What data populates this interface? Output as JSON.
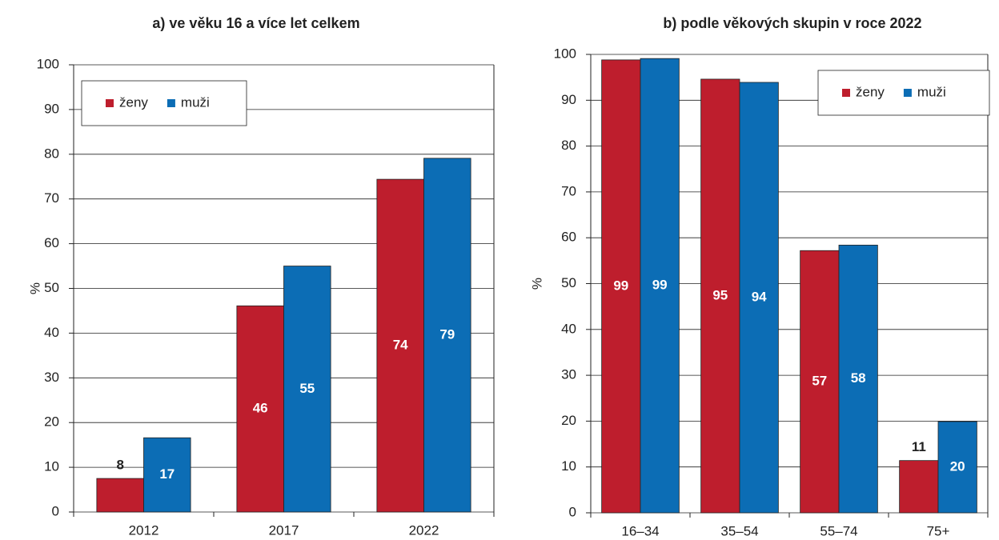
{
  "chart_data": [
    {
      "type": "bar",
      "title": "a) ve věku 16 a více let celkem",
      "ylabel": "%",
      "categories": [
        "2012",
        "2017",
        "2022"
      ],
      "series": [
        {
          "name": "ženy",
          "color": "#be1e2d",
          "values": [
            7.5,
            46.1,
            74.4
          ],
          "value_labels": [
            "8",
            "46",
            "74"
          ]
        },
        {
          "name": "muži",
          "color": "#0c6db5",
          "values": [
            16.6,
            55,
            79.1
          ],
          "value_labels": [
            "17",
            "55",
            "79"
          ]
        }
      ],
      "ylim": [
        0,
        100
      ],
      "yticks": [
        0,
        10,
        20,
        30,
        40,
        50,
        60,
        70,
        80,
        90,
        100
      ],
      "grid": true,
      "legend": "upper left"
    },
    {
      "type": "bar",
      "title": "b) podle věkových skupin v roce 2022",
      "ylabel": "%",
      "categories": [
        "16–34",
        "35–54",
        "55–74",
        "75+"
      ],
      "series": [
        {
          "name": "ženy",
          "color": "#be1e2d",
          "values": [
            98.8,
            94.6,
            57.2,
            11.4
          ],
          "value_labels": [
            "99",
            "95",
            "57",
            "11"
          ]
        },
        {
          "name": "muži",
          "color": "#0c6db5",
          "values": [
            99.1,
            93.9,
            58.4,
            19.9
          ],
          "value_labels": [
            "99",
            "94",
            "58",
            "20"
          ]
        }
      ],
      "ylim": [
        0,
        100
      ],
      "yticks": [
        0,
        10,
        20,
        30,
        40,
        50,
        60,
        70,
        80,
        90,
        100
      ],
      "grid": true,
      "legend": "upper right"
    }
  ]
}
